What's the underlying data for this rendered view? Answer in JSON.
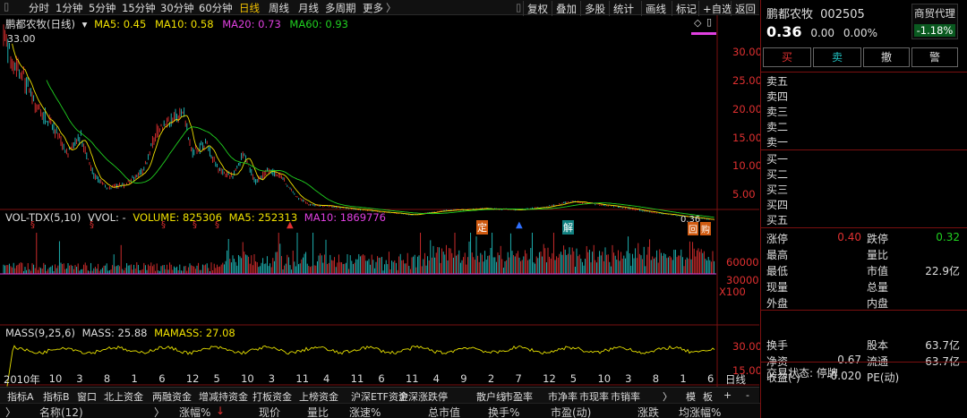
{
  "toolbar": {
    "periods": [
      "分时",
      "1分钟",
      "5分钟",
      "15分钟",
      "30分钟",
      "60分钟",
      "日线",
      "周线",
      "月线",
      "多周期",
      "更多"
    ],
    "active_period": "日线",
    "right_buttons": [
      "复权",
      "叠加",
      "多股",
      "统计",
      "画线",
      "标记",
      "+自选",
      "返回"
    ]
  },
  "main_chart": {
    "title": "鹏都农牧(日线)",
    "ma": [
      {
        "label": "MA5: 0.45",
        "color": "#f0e000"
      },
      {
        "label": "MA10: 0.58",
        "color": "#f0e000"
      },
      {
        "label": "MA20: 0.73",
        "color": "#e040e0"
      },
      {
        "label": "MA60: 0.93",
        "color": "#20d020"
      }
    ],
    "high_label": "33.00",
    "low_label": "0.36",
    "yaxis": [
      "30.00",
      "25.00",
      "20.00",
      "15.00",
      "10.00",
      "5.00"
    ],
    "markers": [
      "§",
      "§",
      "§",
      "§",
      "§",
      "定",
      "解",
      "回",
      "购"
    ]
  },
  "volume_chart": {
    "title": "VOL-TDX(5,10)",
    "vvol": "VVOL: -",
    "volume": "VOLUME: 825306",
    "ma5": "MA5: 252313",
    "ma10": "MA10: 1869776",
    "yaxis": [
      "60000",
      "30000"
    ],
    "unit": "X100"
  },
  "mass_chart": {
    "title": "MASS(9,25,6)",
    "mass": "MASS: 25.88",
    "mamass": "MAMASS: 27.08",
    "yaxis": [
      "30.00",
      "15.00"
    ]
  },
  "xaxis": {
    "labels": [
      "2010年",
      "10",
      "3",
      "8",
      "1",
      "6",
      "12",
      "5",
      "10",
      "3",
      "11",
      "4",
      "11",
      "6",
      "11",
      "4",
      "9",
      "2",
      "7",
      "12",
      "5",
      "10",
      "3",
      "8",
      "1",
      "6"
    ],
    "period": "日线"
  },
  "bottom_tabs": [
    "指标A",
    "指标B",
    "窗口",
    "北上资金",
    "两融资金",
    "增减持资金",
    "打板资金",
    "上榜资金",
    "沪深ETF资金",
    "沪深涨跌停",
    "散户线",
    "市盈率",
    "市净率",
    "市现率",
    "市销率",
    "〉",
    "模",
    "板",
    "+",
    "-"
  ],
  "column_header": [
    "名称(12)",
    "涨幅%",
    "现价",
    "量比",
    "涨速%",
    "总市值",
    "换手%",
    "市盈(动)",
    "涨跌",
    "均涨幅%"
  ],
  "sort_arrow": "↓",
  "quote_panel": {
    "name": "鹏都农牧",
    "code": "002505",
    "sector": "商贸代理",
    "sector_change": "-1.18%",
    "price": "0.36",
    "change": "0.00",
    "change_pct": "0.00%",
    "buttons": [
      "买",
      "卖",
      "撤",
      "警"
    ],
    "sell_levels": [
      "卖五",
      "卖四",
      "卖三",
      "卖二",
      "卖一"
    ],
    "buy_levels": [
      "买一",
      "买二",
      "买三",
      "买四",
      "买五"
    ],
    "stats": [
      {
        "k": "涨停",
        "v": "0.40",
        "k2": "跌停",
        "v2": "0.32"
      },
      {
        "k": "最高",
        "v": "",
        "k2": "量比",
        "v2": ""
      },
      {
        "k": "最低",
        "v": "",
        "k2": "市值",
        "v2": "22.9亿"
      },
      {
        "k": "现量",
        "v": "",
        "k2": "总量",
        "v2": ""
      },
      {
        "k": "外盘",
        "v": "",
        "k2": "内盘",
        "v2": ""
      }
    ],
    "stats2": [
      {
        "k": "换手",
        "v": "",
        "k2": "股本",
        "v2": "63.7亿"
      },
      {
        "k": "净资",
        "v": "0.67",
        "k2": "流通",
        "v2": "63.7亿"
      },
      {
        "k": "收益(-)",
        "v": "-0.020",
        "k2": "PE(动)",
        "v2": ""
      }
    ],
    "status_label": "交易状态: 停牌"
  },
  "colors": {
    "up": "#e03030",
    "down": "#20c0c0",
    "ma5": "#f0e000",
    "ma20": "#e040e0",
    "ma60": "#20d020",
    "bg": "#000000"
  }
}
